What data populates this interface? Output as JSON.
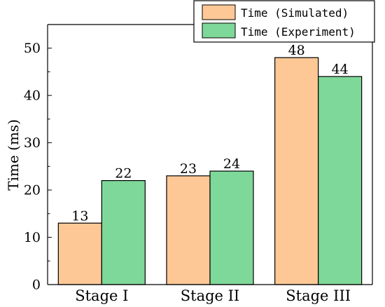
{
  "chart_data": {
    "type": "bar",
    "categories": [
      "Stage I",
      "Stage II",
      "Stage III"
    ],
    "series": [
      {
        "name": "Time (Simulated)",
        "values": [
          13,
          23,
          48
        ],
        "color": "#FDC896"
      },
      {
        "name": "Time (Experiment)",
        "values": [
          22,
          24,
          44
        ],
        "color": "#7ED899"
      }
    ],
    "ylabel": "Time (ms)",
    "xlabel": "",
    "ylim": [
      0,
      55
    ],
    "yticks": [
      0,
      10,
      20,
      30,
      40,
      50
    ],
    "grid": false,
    "legend": "top-right"
  }
}
